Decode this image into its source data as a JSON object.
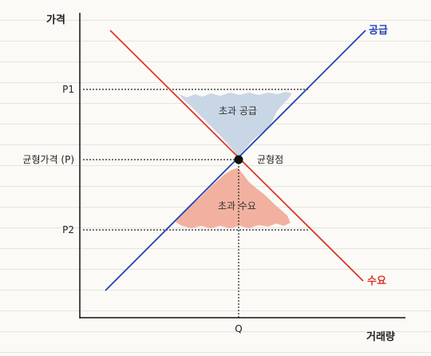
{
  "axes": {
    "y_label": "가격",
    "x_label": "거래량"
  },
  "curves": {
    "supply": {
      "label": "공급",
      "color": "#2142b5"
    },
    "demand": {
      "label": "수요",
      "color": "#d83a2a"
    }
  },
  "ticks": {
    "p1": "P1",
    "p_eq": "균형가격 (P)",
    "p2": "P2",
    "q": "Q"
  },
  "equilibrium": {
    "label": "균형점"
  },
  "regions": {
    "excess_supply": {
      "label": "초과 공급",
      "color": "#c9d6e6"
    },
    "excess_demand": {
      "label": "초과 수요",
      "color": "#f2b1a0"
    }
  }
}
